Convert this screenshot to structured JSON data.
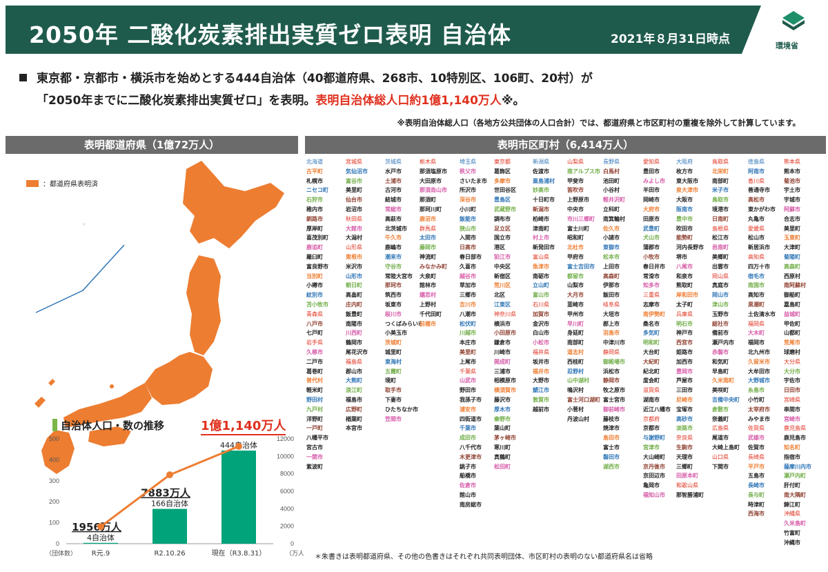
{
  "header": {
    "title": "2050年 二酸化炭素排出実質ゼロ表明 自治体",
    "date": "2021年８月31日時点",
    "logo_text": "環境省"
  },
  "lead": {
    "line1": "東京都・京都市・横浜市を始めとする444自治体（40都道府県、268市、10特別区、106町、20村）が",
    "line2_a": "「2050年までに二酸化炭素排出実質ゼロ」を表明。",
    "line2_b": "表明自治体総人口約1億1,140万人",
    "line2_c": "※。",
    "note": "※表明自治体総人口（各地方公共団体の人口合計）では、都道府県と市区町村の重複を除外して計算しています。"
  },
  "bands": {
    "left": "表明都道府県（1億72万人）",
    "right": "表明市区町村（6,414万人）"
  },
  "legend": {
    "label": "：都道府県表明済",
    "color": "#ed7d31"
  },
  "colors": {
    "header": "#1f5b4d",
    "accent": "#ed7d31",
    "bar": "#00a37a",
    "red": "#e0301e",
    "blue": "#2e75b6",
    "green": "#70ad47",
    "pink": "#d65aa8"
  },
  "municipality_columns": [
    [
      "北海道",
      "古平町",
      "札幌市",
      "ニセコ町",
      "石狩市",
      "稚内市",
      "釧路市",
      "厚岸町",
      "喜茂別町",
      "鹿追町",
      "羅臼町",
      "富良野市",
      "当別町",
      "小樽市",
      "紋別市",
      "苫小牧市",
      "青森県",
      "八戸市",
      "七戸町",
      "岩手県",
      "久慈市",
      "二戸市",
      "葛巻町",
      "普代村",
      "軽米町",
      "野田村",
      "九戸村",
      "洋野町",
      "一戸町",
      "八幡平市",
      "宮古市",
      "一関市",
      "紫波町"
    ],
    [
      "宮城県",
      "気仙沼市",
      "富谷市",
      "美里町",
      "仙台市",
      "岩沼市",
      "秋田県",
      "大館市",
      "大潟村",
      "山形県",
      "東根市",
      "米沢市",
      "山形市",
      "朝日町",
      "高畠町",
      "庄内町",
      "飯豊町",
      "南陽市",
      "川西町",
      "鶴岡市",
      "尾花沢市",
      "福島県",
      "郡山市",
      "大熊町",
      "浪江町",
      "福島市",
      "広野町",
      "楢葉町",
      "本宮市"
    ],
    [
      "茨城県",
      "水戸市",
      "土浦市",
      "古河市",
      "結城市",
      "常総市",
      "高萩市",
      "北茨城市",
      "牛久市",
      "鹿嶋市",
      "潮来市",
      "守谷市",
      "常陸大宮市",
      "那珂市",
      "筑西市",
      "坂東市",
      "桜川市",
      "つくばみらい市",
      "小美玉市",
      "茨城町",
      "城里町",
      "東海村",
      "五霞町",
      "境町",
      "取手市",
      "下妻市",
      "ひたちなか市",
      "笠間市"
    ],
    [
      "栃木県",
      "那須塩原市",
      "大田原市",
      "那須烏山市",
      "那須町",
      "那珂川町",
      "鹿沼市",
      "群馬県",
      "太田市",
      "藤岡市",
      "神流町",
      "みなかみ町",
      "大泉町",
      "館林市",
      "嬬恋村",
      "上野村",
      "千代田町",
      "前橋市"
    ],
    [
      "埼玉県",
      "秩父市",
      "さいたま市",
      "所沢市",
      "深谷市",
      "小川町",
      "飯能市",
      "狭山市",
      "入間市",
      "日高市",
      "春日部市",
      "久喜市",
      "越谷市",
      "草加市",
      "三郷市",
      "吉川市",
      "八潮市",
      "松伏町",
      "川越市",
      "本庄市",
      "美里町",
      "上尾市",
      "千葉県",
      "山武市",
      "野田市",
      "我孫子市",
      "浦安市",
      "四街道市",
      "千葉市",
      "成田市",
      "八千代市",
      "木更津市",
      "銚子市",
      "船橋市",
      "佐倉市",
      "館山市",
      "南房総市"
    ],
    [
      "東京都",
      "葛飾区",
      "多摩市",
      "世田谷区",
      "豊島区",
      "武蔵野市",
      "調布市",
      "足立区",
      "国立市",
      "港区",
      "狛江市",
      "中央区",
      "新宿区",
      "荒川区",
      "北区",
      "江東区",
      "神奈川県",
      "横浜市",
      "小田原市",
      "鎌倉市",
      "川崎市",
      "開成町",
      "三浦市",
      "相模原市",
      "横須賀市",
      "藤沢市",
      "厚木市",
      "秦野市",
      "葉山町",
      "茅ヶ崎市",
      "寒川町",
      "真鶴町",
      "松田町"
    ],
    [
      "新潟県",
      "佐渡市",
      "粟島浦村",
      "妙高市",
      "十日町市",
      "新潟市",
      "柏崎市",
      "津南町",
      "村上市",
      "新発田市",
      "富山県",
      "魚津市",
      "南砺市",
      "立山町",
      "富山市",
      "石川県",
      "加賀市",
      "金沢市",
      "白山市",
      "小松市",
      "福井県",
      "坂井市",
      "福井市",
      "大野市",
      "鯖江市",
      "敦賀市",
      "越前市"
    ],
    [
      "山梨県",
      "南アルプス市",
      "甲斐市",
      "笛吹市",
      "上野原市",
      "中央市",
      "市川三郷町",
      "富士川町",
      "昭和町",
      "北杜市",
      "甲府市",
      "富士吉田市",
      "都留市",
      "山梨市",
      "大月市",
      "韮崎市",
      "甲州市",
      "早川町",
      "身延町",
      "南部町",
      "道志村",
      "西桂町",
      "忍野村",
      "山中湖村",
      "鳴沢村",
      "富士河口湖町",
      "小菅村",
      "丹波山村"
    ],
    [
      "長野県",
      "白馬村",
      "池田町",
      "小谷村",
      "軽井沢町",
      "立科町",
      "南箕輪村",
      "佐久市",
      "小諸市",
      "東御市",
      "松本市",
      "上田市",
      "高森町",
      "伊那市",
      "飯田市",
      "岐阜県",
      "大垣市",
      "郡上市",
      "羽島市",
      "中津川市",
      "静岡県",
      "御殿場市",
      "浜松市",
      "静岡市",
      "牧之原市",
      "富士宮市",
      "御前崎市",
      "藤枝市",
      "焼津市",
      "島田市",
      "富士市",
      "磐田市",
      "湖西市"
    ],
    [
      "愛知県",
      "豊田市",
      "みよし市",
      "半田市",
      "岡崎市",
      "大府市",
      "田原市",
      "武豊町",
      "犬山市",
      "蒲郡市",
      "小牧市",
      "春日井市",
      "常滑市",
      "知多市",
      "三重県",
      "志摩市",
      "南伊勢町",
      "桑名市",
      "多気町",
      "明和町",
      "大台町",
      "大紀町",
      "紀北町",
      "度会町",
      "滋賀県",
      "湖南市",
      "近江八幡市",
      "京都府",
      "京都市",
      "与謝野町",
      "宮津市",
      "大山崎町",
      "京丹後市",
      "京田辺市",
      "亀岡市",
      "福知山市"
    ],
    [
      "大阪府",
      "枚方市",
      "東大阪市",
      "泉大津市",
      "大阪市",
      "阪南市",
      "豊中市",
      "吹田市",
      "能勢町",
      "河内長野市",
      "堺市",
      "八尾市",
      "和泉市",
      "熊取町",
      "岸和田市",
      "太子町",
      "兵庫県",
      "明石市",
      "神戸市",
      "西宮市",
      "姫路市",
      "加西市",
      "豊岡市",
      "芦屋市",
      "三田市",
      "尼崎市",
      "宝塚市",
      "高砂市",
      "淡路市",
      "奈良県",
      "生駒市",
      "天理市",
      "三郷町",
      "田原本町",
      "和歌山県",
      "那智勝浦町"
    ],
    [
      "鳥取県",
      "北栄町",
      "南部町",
      "米子市",
      "鳥取市",
      "境港市",
      "日南町",
      "島根県",
      "松江市",
      "邑南町",
      "美郷町",
      "出雲市",
      "岡山県",
      "真庭市",
      "岡山市",
      "津山市",
      "玉野市",
      "総社市",
      "備前市",
      "瀬戸内市",
      "赤磐市",
      "和気町",
      "早島町",
      "久米南町",
      "美咲町",
      "吉備中央町",
      "倉敷市",
      "奈義町",
      "広島県",
      "尾道市",
      "大崎上島町",
      "山口県",
      "下関市"
    ],
    [
      "徳島県",
      "阿南市",
      "香川県",
      "善通寺市",
      "高松市",
      "東かがわ市",
      "丸亀市",
      "愛媛県",
      "松山市",
      "新居浜市",
      "高知県",
      "四万十市",
      "宿毛市",
      "南国市",
      "高知市",
      "黒潮町",
      "土佐清水市",
      "福岡県",
      "大木町",
      "福岡市",
      "北九州市",
      "久留米市",
      "大牟田市",
      "大野城市",
      "糸島市",
      "小竹町",
      "太宰府市",
      "みやま市",
      "佐賀県",
      "武雄市",
      "佐賀市",
      "長崎県",
      "平戸市",
      "五島市",
      "長崎市",
      "長与町",
      "時津町",
      "西海市"
    ],
    [
      "熊本県",
      "熊本市",
      "菊池市",
      "宇土市",
      "宇城市",
      "阿蘇市",
      "合志市",
      "美里町",
      "玉東町",
      "大津町",
      "菊陽町",
      "高森町",
      "西原村",
      "南阿蘇村",
      "御船町",
      "嘉島町",
      "益城町",
      "甲佐町",
      "山都町",
      "荒尾市",
      "球磨村",
      "大分県",
      "大分市",
      "宇佐市",
      "日田市",
      "宮崎県",
      "串間市",
      "宮崎市",
      "鹿児島県",
      "鹿児島市",
      "知名町",
      "指宿市",
      "薩摩川内市",
      "瀬戸内町",
      "肝付町",
      "南大隅町",
      "錦江町",
      "沖縄県",
      "久米島町",
      "竹富町",
      "沖縄市"
    ]
  ],
  "chart_data": {
    "type": "bar",
    "title": "自治体人口・数の推移",
    "categories": [
      "R元.9",
      "R2.10.26",
      "現在（R3.8.31）"
    ],
    "bar_label_left": "（団体数）",
    "line_label_right": "（万人）",
    "series": [
      {
        "kind": "bar",
        "axis": "left",
        "values": [
          4,
          166,
          444
        ],
        "labels": [
          "4自治体",
          "166自治体",
          "444自治体"
        ]
      },
      {
        "kind": "line",
        "axis": "right",
        "values": [
          1956,
          7883,
          11140
        ],
        "labels": [
          "1956万人",
          "7883万人",
          "1億1,140万人"
        ]
      }
    ],
    "ylim_left": [
      0,
      500
    ],
    "yticks_left": [
      0,
      100,
      200,
      300,
      400,
      500
    ],
    "ylim_right": [
      0,
      12000
    ],
    "yticks_right": [
      0,
      2000,
      4000,
      6000,
      8000,
      10000,
      12000
    ],
    "grid": false
  },
  "footnote": "＊朱書きは表明都道府県、その他の色書きはそれぞれ共同表明団体、市区町村の表明のない都道府県名は省略"
}
